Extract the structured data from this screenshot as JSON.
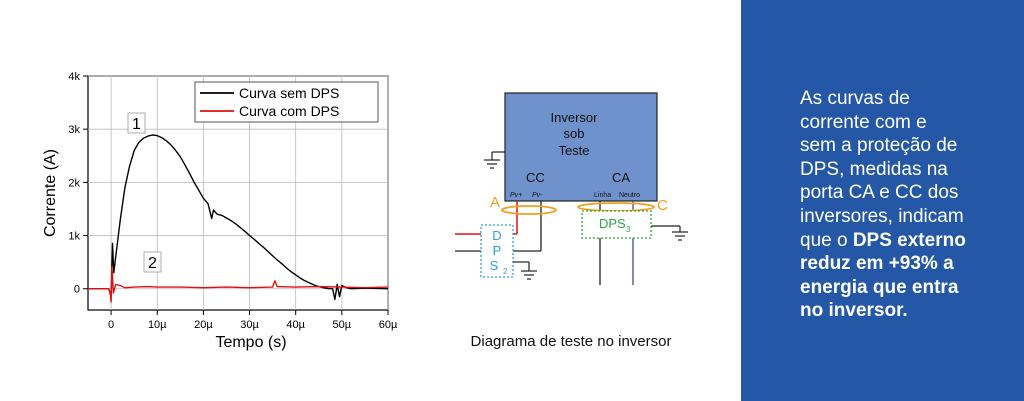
{
  "chart_data": {
    "type": "line",
    "xlabel": "Tempo (s)",
    "ylabel": "Corrente (A)",
    "xlim": [
      -5,
      60
    ],
    "ylim": [
      -400,
      4000
    ],
    "x_ticks": [
      0,
      10,
      20,
      30,
      40,
      50,
      60
    ],
    "x_tick_labels": [
      "0",
      "10µ",
      "20µ",
      "30µ",
      "40µ",
      "50µ",
      "60µ"
    ],
    "y_ticks": [
      0,
      1000,
      2000,
      3000,
      4000
    ],
    "y_tick_labels": [
      "0",
      "1k",
      "2k",
      "3k",
      "4k"
    ],
    "legend_position": "top-right",
    "annotations": [
      {
        "text": "1",
        "x": 5.5,
        "y": 3150
      },
      {
        "text": "2",
        "x": 9.5,
        "y": 350
      }
    ],
    "series": [
      {
        "name": "Curva sem DPS",
        "color": "#000000",
        "points": [
          [
            -5,
            0
          ],
          [
            -0.5,
            0
          ],
          [
            0,
            -150
          ],
          [
            0.3,
            850
          ],
          [
            0.6,
            300
          ],
          [
            1,
            600
          ],
          [
            2,
            1300
          ],
          [
            3,
            1900
          ],
          [
            4,
            2300
          ],
          [
            5,
            2600
          ],
          [
            6,
            2750
          ],
          [
            7,
            2830
          ],
          [
            8,
            2870
          ],
          [
            9,
            2890
          ],
          [
            10,
            2880
          ],
          [
            11,
            2840
          ],
          [
            12,
            2780
          ],
          [
            13,
            2700
          ],
          [
            14,
            2600
          ],
          [
            15,
            2480
          ],
          [
            16,
            2330
          ],
          [
            17,
            2170
          ],
          [
            18,
            2000
          ],
          [
            19,
            1850
          ],
          [
            20,
            1700
          ],
          [
            21,
            1600
          ],
          [
            21.8,
            1320
          ],
          [
            22.2,
            1480
          ],
          [
            23,
            1400
          ],
          [
            24,
            1380
          ],
          [
            25,
            1330
          ],
          [
            26,
            1280
          ],
          [
            27,
            1220
          ],
          [
            28,
            1150
          ],
          [
            29,
            1080
          ],
          [
            30,
            1000
          ],
          [
            31,
            930
          ],
          [
            32,
            850
          ],
          [
            33,
            780
          ],
          [
            34,
            700
          ],
          [
            35,
            620
          ],
          [
            36,
            540
          ],
          [
            37,
            470
          ],
          [
            38,
            390
          ],
          [
            39,
            320
          ],
          [
            40,
            260
          ],
          [
            41,
            200
          ],
          [
            42,
            150
          ],
          [
            43,
            110
          ],
          [
            44,
            70
          ],
          [
            45,
            40
          ],
          [
            46,
            20
          ],
          [
            47,
            5
          ],
          [
            48,
            0
          ],
          [
            48.5,
            -200
          ],
          [
            49,
            80
          ],
          [
            49.5,
            -150
          ],
          [
            50,
            60
          ],
          [
            50.5,
            40
          ],
          [
            51,
            20
          ],
          [
            52,
            0
          ],
          [
            55,
            10
          ],
          [
            60,
            0
          ]
        ]
      },
      {
        "name": "Curva com DPS",
        "color": "#e01010",
        "points": [
          [
            -5,
            0
          ],
          [
            -0.5,
            0
          ],
          [
            -0.2,
            -80
          ],
          [
            0,
            -250
          ],
          [
            0.2,
            400
          ],
          [
            0.5,
            -80
          ],
          [
            1,
            80
          ],
          [
            2,
            60
          ],
          [
            3,
            20
          ],
          [
            5,
            30
          ],
          [
            8,
            40
          ],
          [
            10,
            30
          ],
          [
            15,
            30
          ],
          [
            20,
            20
          ],
          [
            25,
            30
          ],
          [
            30,
            20
          ],
          [
            35,
            30
          ],
          [
            35.5,
            150
          ],
          [
            36,
            40
          ],
          [
            40,
            30
          ],
          [
            45,
            40
          ],
          [
            50,
            30
          ],
          [
            55,
            20
          ],
          [
            60,
            30
          ]
        ]
      }
    ]
  },
  "diagram": {
    "caption": "Diagrama de teste no inversor",
    "inverter_label": [
      "Inversor",
      "sob",
      "Teste"
    ],
    "cc_label": "CC",
    "ca_label": "CA",
    "pv_plus": "Pv+",
    "pv_minus": "Pv-",
    "linha": "Linha",
    "neutro": "Neutro",
    "point_a": "A",
    "point_c": "C",
    "dps2_letters": [
      "D",
      "P",
      "S"
    ],
    "dps2_sub": "2",
    "dps3_main": "DPS",
    "dps3_sub": "3"
  },
  "side": {
    "lines": [
      {
        "normal": "As curvas de"
      },
      {
        "normal": "corrente com e"
      },
      {
        "normal": "sem a proteção de"
      },
      {
        "normal": "DPS, medidas na"
      },
      {
        "normal": "porta CA e CC dos"
      },
      {
        "normal": "inversores, indicam"
      },
      {
        "normal": "que o ",
        "bold": "DPS externo"
      },
      {
        "bold": "reduz em +93% a"
      },
      {
        "bold": "energia que entra"
      },
      {
        "bold": "no inversor."
      }
    ]
  },
  "colors": {
    "panel": "#2457a5",
    "inverter_fill": "#7092cc",
    "orange": "#f0a020",
    "dps2": "#2aa0e0",
    "dps3": "#2aa840"
  }
}
